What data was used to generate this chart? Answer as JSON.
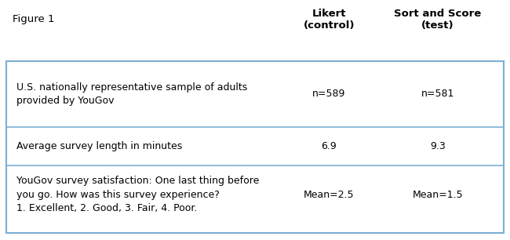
{
  "figure_label": "Figure 1",
  "col_headers": [
    "Likert\n(control)",
    "Sort and Score\n(test)"
  ],
  "rows": [
    {
      "label": "U.S. nationally representative sample of adults\nprovided by YouGov",
      "col1": "n=589",
      "col2": "n=581"
    },
    {
      "label": "Average survey length in minutes",
      "col1": "6.9",
      "col2": "9.3"
    },
    {
      "label": "YouGov survey satisfaction: One last thing before\nyou go. How was this survey experience?\n1. Excellent, 2. Good, 3. Fair, 4. Poor.",
      "col1": "Mean=2.5",
      "col2": "Mean=1.5"
    }
  ],
  "border_color": "#7BAFD4",
  "header_fontsize": 9.5,
  "cell_fontsize": 9.0,
  "fig_label_fontsize": 9.5,
  "bg_color": "#ffffff",
  "text_color": "#000000",
  "font_family": "DejaVu Sans"
}
